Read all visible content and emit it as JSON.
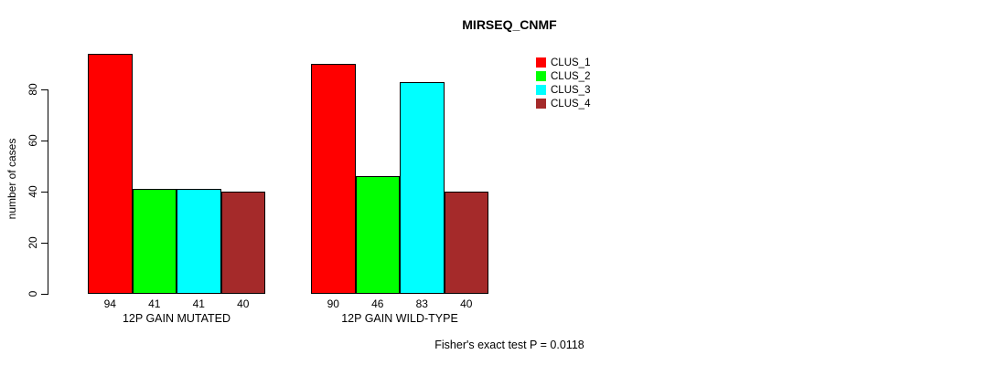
{
  "chart_data": {
    "type": "bar",
    "title": "MIRSEQ_CNMF",
    "ylabel": "number of cases",
    "xlabel": "",
    "ylim": [
      0,
      94
    ],
    "y_ticks": [
      0,
      20,
      40,
      60,
      80
    ],
    "grid": false,
    "legend_position": "top-right",
    "series": [
      {
        "name": "CLUS_1",
        "color": "#FF0000"
      },
      {
        "name": "CLUS_2",
        "color": "#00FF00"
      },
      {
        "name": "CLUS_3",
        "color": "#00FFFF"
      },
      {
        "name": "CLUS_4",
        "color": "#A52A2A"
      }
    ],
    "groups": [
      {
        "label": "12P GAIN MUTATED",
        "values": [
          94,
          41,
          41,
          40
        ]
      },
      {
        "label": "12P GAIN WILD-TYPE",
        "values": [
          90,
          46,
          83,
          40
        ]
      }
    ],
    "annotation": "Fisher's exact test P = 0.0118"
  }
}
